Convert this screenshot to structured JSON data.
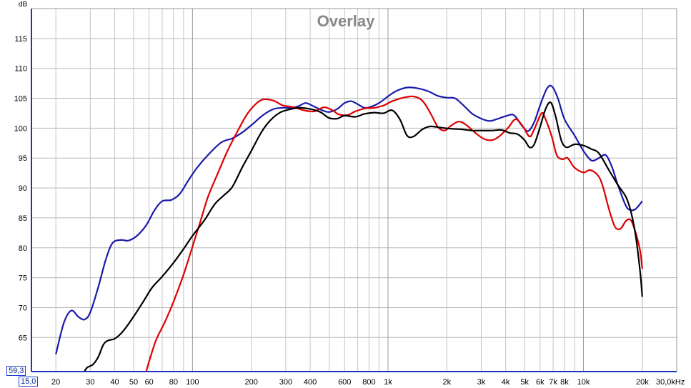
{
  "chart_data": {
    "type": "line",
    "title": "Overlay",
    "ylabel": "dB",
    "xunit_label": "30,0kHz",
    "xscale": "log",
    "xlim": [
      15,
      30000
    ],
    "ylim": [
      59.3,
      120
    ],
    "grid": true,
    "y_ticks": [
      65,
      70,
      75,
      80,
      85,
      90,
      95,
      100,
      105,
      110,
      115
    ],
    "x_ticks": [
      {
        "value": 20,
        "label": "20"
      },
      {
        "value": 30,
        "label": "30"
      },
      {
        "value": 40,
        "label": "40"
      },
      {
        "value": 50,
        "label": "50"
      },
      {
        "value": 60,
        "label": "60"
      },
      {
        "value": 80,
        "label": "80"
      },
      {
        "value": 100,
        "label": "100"
      },
      {
        "value": 200,
        "label": "200"
      },
      {
        "value": 300,
        "label": "300"
      },
      {
        "value": 400,
        "label": "400"
      },
      {
        "value": 600,
        "label": "600"
      },
      {
        "value": 800,
        "label": "800"
      },
      {
        "value": 1000,
        "label": "1k"
      },
      {
        "value": 2000,
        "label": "2k"
      },
      {
        "value": 3000,
        "label": "3k"
      },
      {
        "value": 4000,
        "label": "4k"
      },
      {
        "value": 5000,
        "label": "5k"
      },
      {
        "value": 6000,
        "label": "6k"
      },
      {
        "value": 7000,
        "label": "7k"
      },
      {
        "value": 8000,
        "label": "8k"
      },
      {
        "value": 10000,
        "label": "10k"
      },
      {
        "value": 20000,
        "label": "20k"
      }
    ],
    "ymin_readout": "59,3",
    "xmin_readout": "15,0",
    "series": [
      {
        "color": "#1a1aaa",
        "points": [
          [
            20,
            62.2
          ],
          [
            22,
            67.5
          ],
          [
            24,
            69.5
          ],
          [
            26,
            68.5
          ],
          [
            28,
            68.0
          ],
          [
            30,
            69.2
          ],
          [
            33,
            73.5
          ],
          [
            36,
            78.0
          ],
          [
            39,
            80.8
          ],
          [
            43,
            81.3
          ],
          [
            47,
            81.2
          ],
          [
            52,
            82.0
          ],
          [
            58,
            83.8
          ],
          [
            64,
            86.3
          ],
          [
            70,
            87.8
          ],
          [
            78,
            88.0
          ],
          [
            86,
            89.0
          ],
          [
            95,
            91.2
          ],
          [
            105,
            93.3
          ],
          [
            120,
            95.5
          ],
          [
            140,
            97.6
          ],
          [
            160,
            98.3
          ],
          [
            180,
            99.3
          ],
          [
            200,
            100.5
          ],
          [
            230,
            102.2
          ],
          [
            260,
            103.2
          ],
          [
            290,
            103.4
          ],
          [
            320,
            103.4
          ],
          [
            350,
            103.7
          ],
          [
            380,
            104.2
          ],
          [
            420,
            103.6
          ],
          [
            460,
            103.0
          ],
          [
            500,
            102.7
          ],
          [
            550,
            103.2
          ],
          [
            600,
            104.2
          ],
          [
            650,
            104.5
          ],
          [
            700,
            104.0
          ],
          [
            760,
            103.4
          ],
          [
            820,
            103.6
          ],
          [
            900,
            104.2
          ],
          [
            1000,
            105.3
          ],
          [
            1100,
            106.2
          ],
          [
            1250,
            106.8
          ],
          [
            1400,
            106.7
          ],
          [
            1600,
            106.2
          ],
          [
            1800,
            105.4
          ],
          [
            2000,
            105.1
          ],
          [
            2200,
            105.0
          ],
          [
            2400,
            104.0
          ],
          [
            2700,
            102.4
          ],
          [
            3000,
            101.6
          ],
          [
            3300,
            101.2
          ],
          [
            3600,
            101.5
          ],
          [
            4000,
            102.0
          ],
          [
            4400,
            102.2
          ],
          [
            4800,
            100.6
          ],
          [
            5200,
            99.5
          ],
          [
            5600,
            101.0
          ],
          [
            6000,
            103.8
          ],
          [
            6500,
            106.6
          ],
          [
            6900,
            107.0
          ],
          [
            7400,
            105.0
          ],
          [
            8000,
            101.5
          ],
          [
            9000,
            98.8
          ],
          [
            10000,
            96.2
          ],
          [
            11000,
            94.6
          ],
          [
            12000,
            95.0
          ],
          [
            13000,
            95.5
          ],
          [
            14000,
            93.5
          ],
          [
            15000,
            90.5
          ],
          [
            16500,
            87.0
          ],
          [
            17500,
            86.3
          ],
          [
            18500,
            86.5
          ],
          [
            20000,
            87.8
          ]
        ]
      },
      {
        "color": "#dd0000",
        "points": [
          [
            58,
            59.3
          ],
          [
            60,
            61.0
          ],
          [
            65,
            64.5
          ],
          [
            72,
            67.5
          ],
          [
            80,
            71.0
          ],
          [
            90,
            75.5
          ],
          [
            100,
            80.2
          ],
          [
            110,
            84.5
          ],
          [
            120,
            88.5
          ],
          [
            135,
            92.5
          ],
          [
            150,
            96.0
          ],
          [
            170,
            99.5
          ],
          [
            190,
            102.3
          ],
          [
            210,
            104.0
          ],
          [
            230,
            104.8
          ],
          [
            260,
            104.6
          ],
          [
            290,
            103.8
          ],
          [
            330,
            103.5
          ],
          [
            370,
            103.0
          ],
          [
            420,
            102.8
          ],
          [
            470,
            103.5
          ],
          [
            520,
            103.0
          ],
          [
            560,
            102.3
          ],
          [
            620,
            102.2
          ],
          [
            680,
            102.8
          ],
          [
            760,
            103.3
          ],
          [
            850,
            103.4
          ],
          [
            950,
            103.8
          ],
          [
            1050,
            104.5
          ],
          [
            1200,
            105.1
          ],
          [
            1350,
            105.3
          ],
          [
            1500,
            104.6
          ],
          [
            1650,
            102.5
          ],
          [
            1800,
            100.2
          ],
          [
            1950,
            99.6
          ],
          [
            2100,
            100.4
          ],
          [
            2300,
            101.1
          ],
          [
            2500,
            100.6
          ],
          [
            2800,
            99.2
          ],
          [
            3100,
            98.2
          ],
          [
            3400,
            98.0
          ],
          [
            3700,
            98.6
          ],
          [
            4100,
            100.0
          ],
          [
            4500,
            101.5
          ],
          [
            4900,
            100.3
          ],
          [
            5300,
            98.6
          ],
          [
            5600,
            99.8
          ],
          [
            6100,
            102.5
          ],
          [
            6400,
            101.5
          ],
          [
            6900,
            98.5
          ],
          [
            7300,
            95.5
          ],
          [
            7800,
            94.8
          ],
          [
            8300,
            95.0
          ],
          [
            9000,
            93.4
          ],
          [
            10000,
            92.6
          ],
          [
            10800,
            93.0
          ],
          [
            11800,
            92.2
          ],
          [
            12500,
            90.5
          ],
          [
            13500,
            86.5
          ],
          [
            14500,
            83.5
          ],
          [
            15500,
            83.2
          ],
          [
            16500,
            84.5
          ],
          [
            17500,
            84.6
          ],
          [
            18500,
            82.5
          ],
          [
            19500,
            79.5
          ],
          [
            20000,
            76.5
          ]
        ]
      },
      {
        "color": "#000000",
        "points": [
          [
            28,
            59.3
          ],
          [
            29,
            60.0
          ],
          [
            31,
            60.5
          ],
          [
            33,
            61.8
          ],
          [
            35,
            63.8
          ],
          [
            37,
            64.5
          ],
          [
            40,
            64.8
          ],
          [
            44,
            66.0
          ],
          [
            50,
            68.5
          ],
          [
            56,
            71.0
          ],
          [
            62,
            73.3
          ],
          [
            70,
            75.2
          ],
          [
            80,
            77.5
          ],
          [
            90,
            79.8
          ],
          [
            100,
            82.0
          ],
          [
            115,
            84.6
          ],
          [
            130,
            87.3
          ],
          [
            145,
            88.8
          ],
          [
            160,
            90.2
          ],
          [
            180,
            93.5
          ],
          [
            200,
            96.2
          ],
          [
            225,
            99.3
          ],
          [
            250,
            101.3
          ],
          [
            280,
            102.6
          ],
          [
            310,
            103.1
          ],
          [
            350,
            103.4
          ],
          [
            400,
            103.2
          ],
          [
            450,
            102.7
          ],
          [
            500,
            101.7
          ],
          [
            550,
            101.6
          ],
          [
            600,
            102.1
          ],
          [
            680,
            101.9
          ],
          [
            760,
            102.4
          ],
          [
            850,
            102.6
          ],
          [
            950,
            102.5
          ],
          [
            1050,
            103.0
          ],
          [
            1150,
            101.5
          ],
          [
            1250,
            98.8
          ],
          [
            1350,
            98.6
          ],
          [
            1500,
            99.8
          ],
          [
            1650,
            100.3
          ],
          [
            1850,
            100.1
          ],
          [
            2100,
            99.9
          ],
          [
            2400,
            99.8
          ],
          [
            2700,
            99.6
          ],
          [
            3000,
            99.6
          ],
          [
            3400,
            99.6
          ],
          [
            3800,
            99.7
          ],
          [
            4200,
            99.2
          ],
          [
            4600,
            99.0
          ],
          [
            5000,
            98.0
          ],
          [
            5300,
            96.8
          ],
          [
            5600,
            97.3
          ],
          [
            6000,
            100.2
          ],
          [
            6400,
            103.2
          ],
          [
            6800,
            104.3
          ],
          [
            7200,
            102.0
          ],
          [
            7700,
            98.0
          ],
          [
            8200,
            96.8
          ],
          [
            9000,
            97.3
          ],
          [
            10000,
            97.1
          ],
          [
            11000,
            96.5
          ],
          [
            12000,
            95.8
          ],
          [
            13500,
            93.0
          ],
          [
            15000,
            90.5
          ],
          [
            16500,
            88.5
          ],
          [
            17500,
            86.0
          ],
          [
            18500,
            82.0
          ],
          [
            19500,
            76.0
          ],
          [
            20000,
            71.8
          ]
        ]
      }
    ]
  }
}
